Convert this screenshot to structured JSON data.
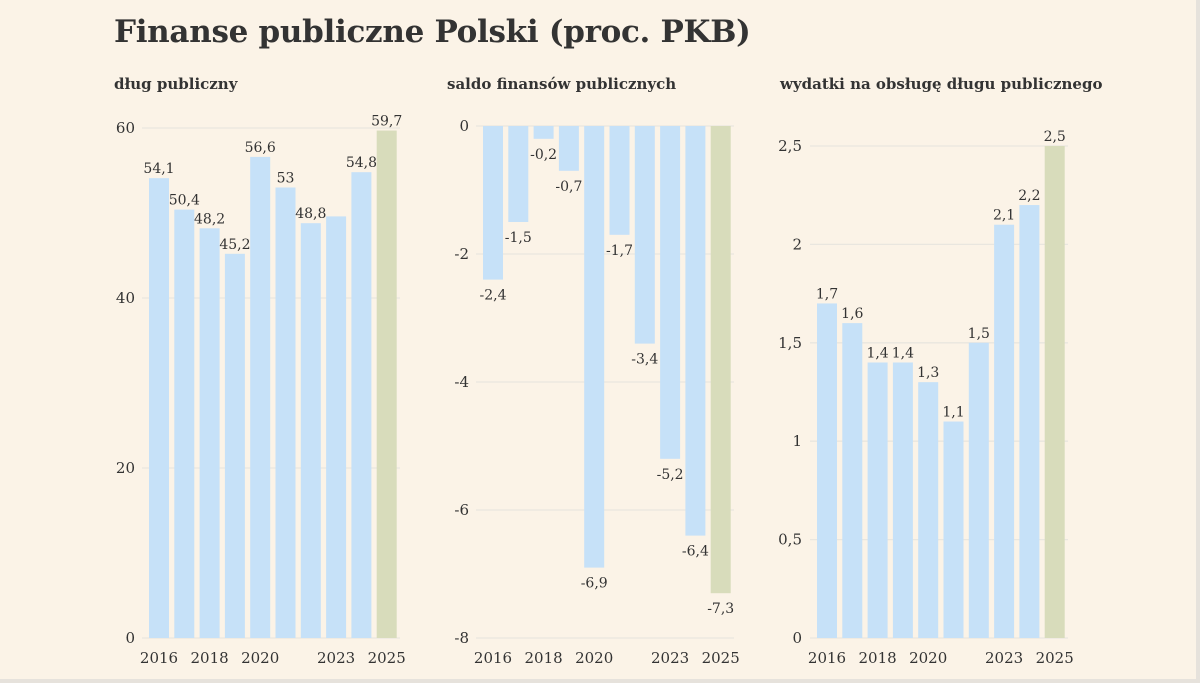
{
  "title": "Finanse publiczne Polski (proc. PKB)",
  "colors": {
    "bar": "#c6e1f8",
    "bar_highlight": "#d8dcbb",
    "grid": "#e9e6df",
    "text": "#333333"
  },
  "chart_data": [
    {
      "type": "bar",
      "title": "dług publiczny",
      "x": [
        2016,
        2017,
        2018,
        2019,
        2020,
        2021,
        2022,
        2023,
        2024,
        2025
      ],
      "values": [
        54.1,
        50.4,
        48.2,
        45.2,
        56.6,
        53,
        48.8,
        49.6,
        54.8,
        59.7
      ],
      "data_labels": [
        "54,1",
        "50,4",
        "48,2",
        "45,2",
        "56,6",
        "53",
        "48,8",
        "",
        "54,8",
        "59,7"
      ],
      "x_tick_labels": [
        "2016",
        "",
        "2018",
        "",
        "2020",
        "",
        "",
        "2023",
        "",
        "2025"
      ],
      "y_ticks": [
        0,
        20,
        40,
        60
      ],
      "y_tick_labels": [
        "0",
        "20",
        "40",
        "60"
      ],
      "ylim": [
        0,
        60
      ],
      "highlight_last": true,
      "grid": true
    },
    {
      "type": "bar",
      "title": "saldo finansów publicznych",
      "x": [
        2016,
        2017,
        2018,
        2019,
        2020,
        2021,
        2022,
        2023,
        2024,
        2025
      ],
      "values": [
        -2.4,
        -1.5,
        -0.2,
        -0.7,
        -6.9,
        -1.7,
        -3.4,
        -5.2,
        -6.4,
        -7.3
      ],
      "data_labels": [
        "-2,4",
        "-1,5",
        "-0,2",
        "-0,7",
        "-6,9",
        "-1,7",
        "-3,4",
        "-5,2",
        "-6,4",
        "-7,3"
      ],
      "x_tick_labels": [
        "2016",
        "",
        "2018",
        "",
        "2020",
        "",
        "",
        "2023",
        "",
        "2025"
      ],
      "y_ticks": [
        0,
        -2,
        -4,
        -6,
        -8
      ],
      "y_tick_labels": [
        "0",
        "-2",
        "-4",
        "-6",
        "-8"
      ],
      "ylim": [
        -8,
        0
      ],
      "highlight_last": true,
      "grid": true
    },
    {
      "type": "bar",
      "title": "wydatki na obsługę długu publicznego",
      "x": [
        2016,
        2017,
        2018,
        2019,
        2020,
        2021,
        2022,
        2023,
        2024,
        2025
      ],
      "values": [
        1.7,
        1.6,
        1.4,
        1.4,
        1.3,
        1.1,
        1.5,
        2.1,
        2.2,
        2.5
      ],
      "data_labels": [
        "1,7",
        "1,6",
        "1,4",
        "1,4",
        "1,3",
        "1,1",
        "1,5",
        "2,1",
        "2,2",
        "2,5"
      ],
      "x_tick_labels": [
        "2016",
        "",
        "2018",
        "",
        "2020",
        "",
        "",
        "2023",
        "",
        "2025"
      ],
      "y_ticks": [
        0,
        0.5,
        1,
        1.5,
        2,
        2.5
      ],
      "y_tick_labels": [
        "0",
        "0,5",
        "1",
        "1,5",
        "2",
        "2,5"
      ],
      "ylim": [
        0,
        2.6
      ],
      "highlight_last": true,
      "grid": true
    }
  ]
}
